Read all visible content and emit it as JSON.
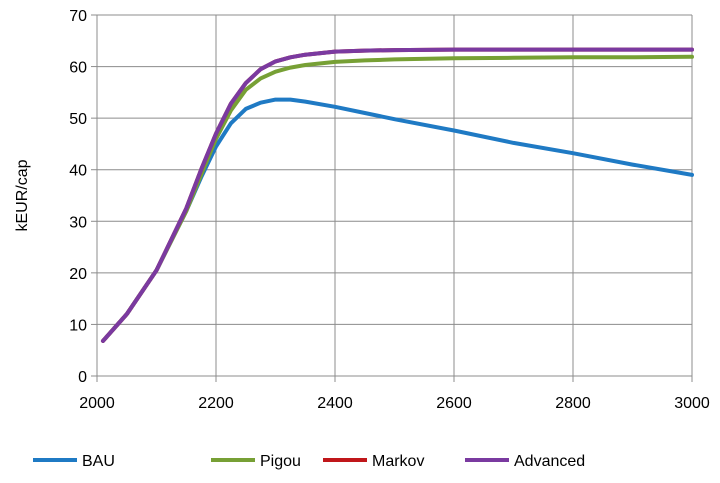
{
  "chart_data": {
    "type": "line",
    "title": "",
    "xlabel": "",
    "ylabel": "kEUR/cap",
    "xlim": [
      2000,
      3000
    ],
    "ylim": [
      0,
      70
    ],
    "x_ticks": [
      "2000",
      "2200",
      "2400",
      "2600",
      "2800",
      "3000"
    ],
    "y_ticks": [
      "0",
      "10",
      "20",
      "30",
      "40",
      "50",
      "60",
      "70"
    ],
    "grid": true,
    "legend_position": "bottom",
    "series": [
      {
        "name": "BAU",
        "color": "#1f7ac4",
        "x": [
          2010,
          2050,
          2100,
          2150,
          2175,
          2200,
          2225,
          2250,
          2275,
          2300,
          2325,
          2350,
          2400,
          2450,
          2500,
          2600,
          2700,
          2800,
          2900,
          3000
        ],
        "y": [
          6.8,
          12,
          20.5,
          32,
          38.5,
          44.5,
          49,
          51.8,
          53,
          53.6,
          53.6,
          53.2,
          52.2,
          51,
          49.8,
          47.6,
          45.2,
          43.2,
          41,
          39
        ]
      },
      {
        "name": "Pigou",
        "color": "#77a035",
        "x": [
          2010,
          2050,
          2100,
          2150,
          2175,
          2200,
          2225,
          2250,
          2275,
          2300,
          2325,
          2350,
          2400,
          2450,
          2500,
          2600,
          2700,
          2800,
          2900,
          3000
        ],
        "y": [
          6.8,
          12,
          20.5,
          32,
          39,
          46,
          51.5,
          55.5,
          57.7,
          59,
          59.8,
          60.3,
          60.9,
          61.2,
          61.4,
          61.6,
          61.7,
          61.8,
          61.8,
          61.9
        ]
      },
      {
        "name": "Markov",
        "color": "#c0161a",
        "x": [
          2010,
          2050,
          2100,
          2150,
          2175,
          2200,
          2225,
          2250,
          2275,
          2300,
          2325,
          2350,
          2400,
          2450,
          2500,
          2600,
          2700,
          2800,
          2900,
          3000
        ],
        "y": [
          6.8,
          12,
          20.5,
          32.5,
          40,
          47,
          52.8,
          56.8,
          59.5,
          61,
          61.8,
          62.3,
          62.9,
          63.1,
          63.2,
          63.3,
          63.3,
          63.3,
          63.3,
          63.3
        ]
      },
      {
        "name": "Advanced",
        "color": "#7a3aa0",
        "x": [
          2010,
          2050,
          2100,
          2150,
          2175,
          2200,
          2225,
          2250,
          2275,
          2300,
          2325,
          2350,
          2400,
          2450,
          2500,
          2600,
          2700,
          2800,
          2900,
          3000
        ],
        "y": [
          6.8,
          12,
          20.5,
          32.5,
          40,
          47,
          52.8,
          56.8,
          59.5,
          61,
          61.8,
          62.3,
          62.9,
          63.1,
          63.2,
          63.3,
          63.3,
          63.3,
          63.3,
          63.3
        ]
      }
    ]
  }
}
